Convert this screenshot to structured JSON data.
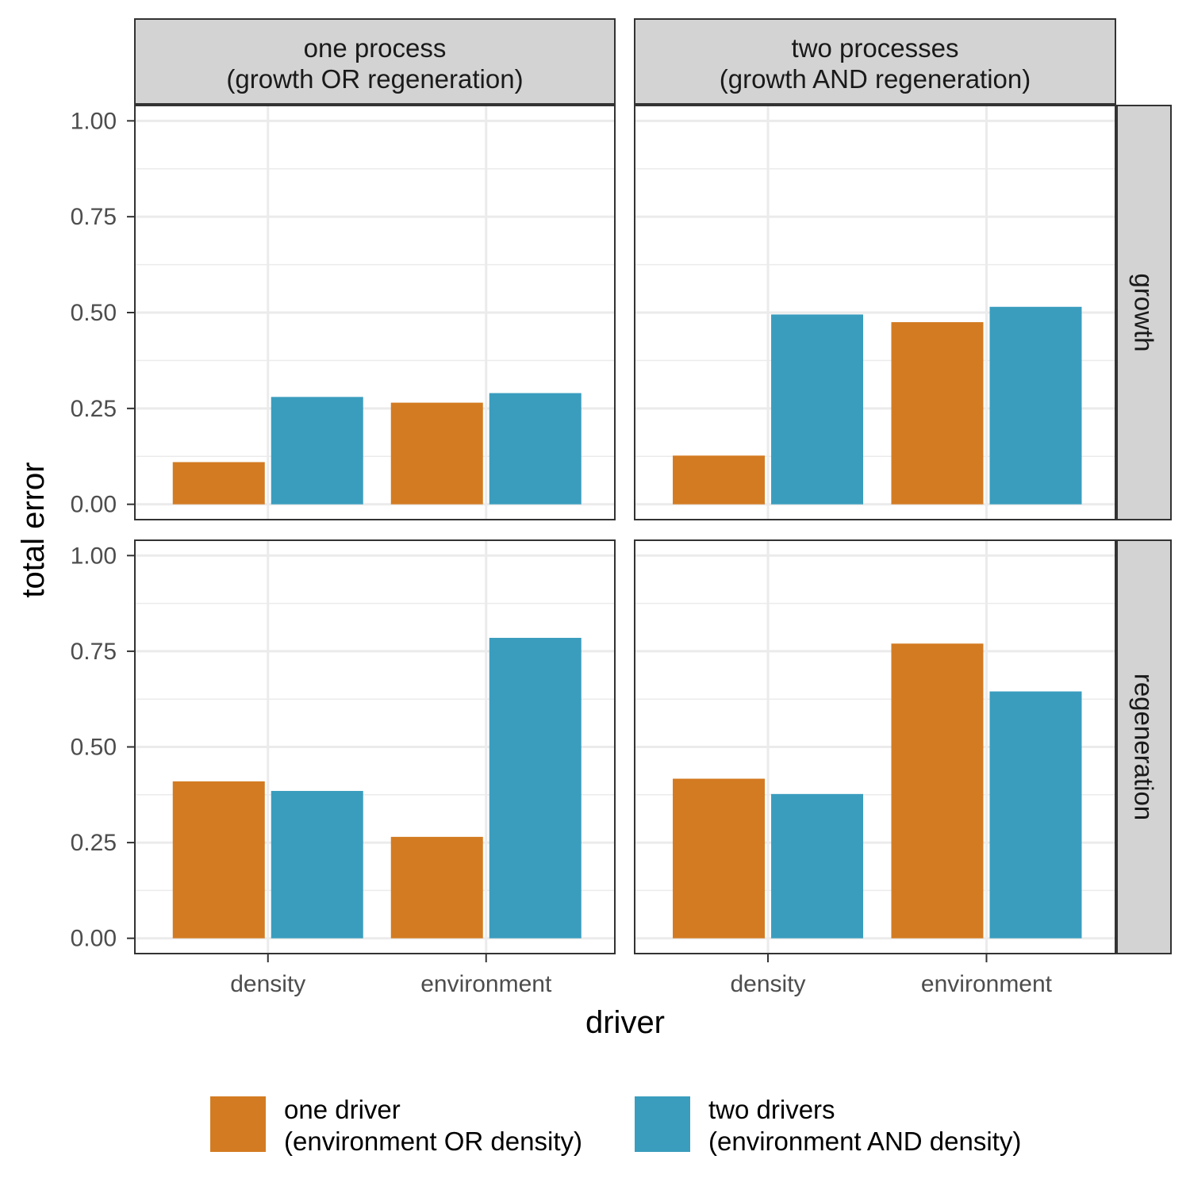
{
  "chart_data": {
    "type": "bar",
    "xlabel": "driver",
    "ylabel": "total error",
    "ylim": [
      -0.04,
      1.04
    ],
    "yticks": [
      "0.00",
      "0.25",
      "0.50",
      "0.75",
      "1.00"
    ],
    "ytick_values": [
      0,
      0.25,
      0.5,
      0.75,
      1.0
    ],
    "categories": [
      "density",
      "environment"
    ],
    "grid": true,
    "legend_position": "bottom",
    "columns": [
      {
        "line1": "one process",
        "line2": "(growth OR regeneration)"
      },
      {
        "line1": "two processes",
        "line2": "(growth AND regeneration)"
      }
    ],
    "rows": [
      "growth",
      "regeneration"
    ],
    "series": [
      {
        "name_line1": "one driver",
        "name_line2": "(environment OR density)",
        "color": "#D37B22"
      },
      {
        "name_line1": "two drivers",
        "name_line2": "(environment AND density)",
        "color": "#3A9DBE"
      }
    ],
    "panels": [
      {
        "row": 0,
        "col": 0,
        "values": [
          [
            0.11,
            0.265
          ],
          [
            0.28,
            0.29
          ]
        ]
      },
      {
        "row": 0,
        "col": 1,
        "values": [
          [
            0.127,
            0.475
          ],
          [
            0.495,
            0.515
          ]
        ]
      },
      {
        "row": 1,
        "col": 0,
        "values": [
          [
            0.41,
            0.265
          ],
          [
            0.385,
            0.785
          ]
        ]
      },
      {
        "row": 1,
        "col": 1,
        "values": [
          [
            0.417,
            0.77
          ],
          [
            0.377,
            0.645
          ]
        ]
      }
    ]
  }
}
